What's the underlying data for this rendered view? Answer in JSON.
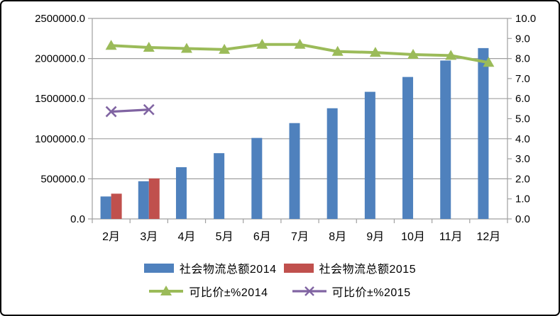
{
  "chart_data": {
    "type": "combo-bar-line",
    "title": "",
    "categories": [
      "2月",
      "3月",
      "4月",
      "5月",
      "6月",
      "7月",
      "8月",
      "9月",
      "10月",
      "11月",
      "12月"
    ],
    "series": [
      {
        "name": "社会物流总额2014",
        "type": "bar",
        "axis": "left",
        "color": "#4F81BD",
        "values": [
          280000,
          470000,
          645000,
          820000,
          1010000,
          1195000,
          1380000,
          1585000,
          1770000,
          1975000,
          2130000
        ]
      },
      {
        "name": "社会物流总额2015",
        "type": "bar",
        "axis": "left",
        "color": "#C0504D",
        "values": [
          315000,
          505000,
          null,
          null,
          null,
          null,
          null,
          null,
          null,
          null,
          null
        ]
      },
      {
        "name": "可比价±%2014",
        "type": "line",
        "marker": "triangle",
        "axis": "right",
        "color": "#9BBB59",
        "values": [
          8.65,
          8.55,
          8.5,
          8.45,
          8.7,
          8.7,
          8.35,
          8.3,
          8.2,
          8.15,
          7.8
        ]
      },
      {
        "name": "可比价±%2015",
        "type": "line",
        "marker": "x",
        "axis": "right",
        "color": "#8064A2",
        "values": [
          5.35,
          5.45,
          null,
          null,
          null,
          null,
          null,
          null,
          null,
          null,
          null
        ]
      }
    ],
    "left_axis": {
      "min": 0,
      "max": 2500000,
      "step": 500000,
      "tick_labels": [
        "0.0",
        "500000.0",
        "1000000.0",
        "1500000.0",
        "2000000.0",
        "2500000.0"
      ]
    },
    "right_axis": {
      "min": 0,
      "max": 10,
      "step": 1,
      "tick_labels": [
        "0.0",
        "1.0",
        "2.0",
        "3.0",
        "4.0",
        "5.0",
        "6.0",
        "7.0",
        "8.0",
        "9.0",
        "10.0"
      ]
    },
    "grid": true,
    "grid_color": "#A0A0A0",
    "axis_text_color": "#000000",
    "legend_position": "bottom"
  }
}
